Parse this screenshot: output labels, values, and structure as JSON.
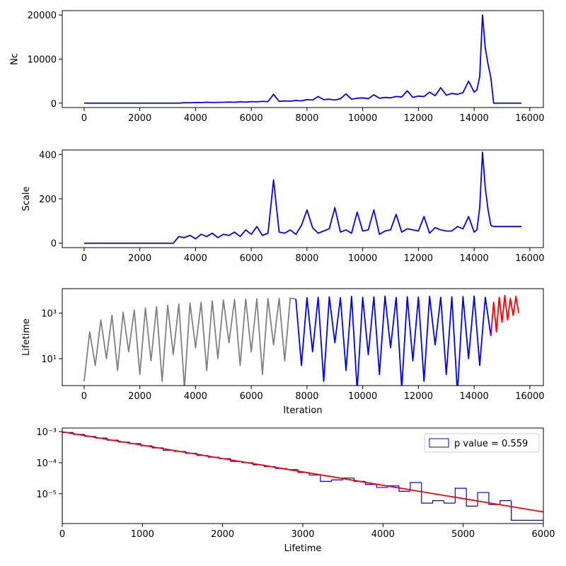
{
  "chart_data": [
    {
      "type": "line",
      "ylabel": "Nc",
      "x": [
        0,
        200,
        400,
        600,
        800,
        1000,
        1200,
        1400,
        1600,
        1800,
        2000,
        2200,
        2400,
        2600,
        2800,
        3000,
        3200,
        3400,
        3600,
        3800,
        4000,
        4200,
        4400,
        4600,
        4800,
        5000,
        5200,
        5400,
        5600,
        5800,
        6000,
        6200,
        6400,
        6600,
        6800,
        7000,
        7200,
        7400,
        7600,
        7800,
        8000,
        8200,
        8400,
        8600,
        8800,
        9000,
        9200,
        9400,
        9600,
        9800,
        10000,
        10200,
        10400,
        10600,
        10800,
        11000,
        11200,
        11400,
        11600,
        11800,
        12000,
        12200,
        12400,
        12600,
        12800,
        13000,
        13200,
        13400,
        13600,
        13800,
        14000,
        14100,
        14200,
        14300,
        14400,
        14500,
        14600,
        14700,
        15000,
        15400,
        15700
      ],
      "series": [
        {
          "color": "#0000ff",
          "values": [
            0,
            0,
            0,
            0,
            0,
            0,
            0,
            0,
            0,
            0,
            0,
            0,
            0,
            0,
            0,
            0,
            0,
            0,
            100,
            80,
            150,
            120,
            200,
            150,
            180,
            200,
            250,
            200,
            300,
            250,
            350,
            300,
            400,
            350,
            2000,
            400,
            500,
            450,
            600,
            500,
            800,
            700,
            1500,
            800,
            900,
            700,
            1000,
            2100,
            900,
            1100,
            1200,
            1000,
            1900,
            1100,
            1300,
            1200,
            1500,
            1400,
            2800,
            1300,
            1600,
            1500,
            2500,
            1700,
            3500,
            1800,
            2200,
            2000,
            2400,
            5000,
            2500,
            3000,
            6000,
            20000,
            12500,
            8800,
            5800,
            0,
            0,
            0,
            0
          ]
        }
      ],
      "xlim": [
        -785,
        16485
      ],
      "xticks": [
        0,
        2000,
        4000,
        6000,
        8000,
        10000,
        12000,
        14000,
        16000
      ],
      "ylim": [
        -1000,
        21000
      ],
      "yticks": [
        0,
        10000,
        20000
      ]
    },
    {
      "type": "line",
      "ylabel": "Scale",
      "x": [
        0,
        200,
        400,
        600,
        800,
        1000,
        1200,
        1400,
        1600,
        1800,
        2000,
        2200,
        2400,
        2600,
        2800,
        3000,
        3200,
        3400,
        3600,
        3800,
        4000,
        4200,
        4400,
        4600,
        4800,
        5000,
        5200,
        5400,
        5600,
        5800,
        6000,
        6200,
        6400,
        6600,
        6800,
        7000,
        7200,
        7400,
        7600,
        7800,
        8000,
        8200,
        8400,
        8600,
        8800,
        9000,
        9200,
        9400,
        9600,
        9800,
        10000,
        10200,
        10400,
        10600,
        10800,
        11000,
        11200,
        11400,
        11600,
        11800,
        12000,
        12200,
        12400,
        12600,
        12800,
        13000,
        13200,
        13400,
        13600,
        13800,
        14000,
        14100,
        14200,
        14300,
        14400,
        14500,
        14600,
        14700,
        15000,
        15400,
        15700
      ],
      "series": [
        {
          "color": "#0000ff",
          "values": [
            0,
            0,
            0,
            0,
            0,
            0,
            0,
            0,
            0,
            0,
            0,
            0,
            0,
            0,
            0,
            0,
            0,
            30,
            25,
            35,
            20,
            40,
            30,
            45,
            25,
            40,
            35,
            50,
            30,
            60,
            40,
            75,
            35,
            45,
            285,
            50,
            45,
            60,
            40,
            80,
            150,
            70,
            45,
            55,
            65,
            160,
            50,
            60,
            45,
            140,
            55,
            60,
            150,
            40,
            55,
            60,
            130,
            50,
            65,
            60,
            55,
            120,
            45,
            70,
            60,
            55,
            55,
            75,
            65,
            120,
            50,
            60,
            160,
            410,
            250,
            150,
            80,
            75,
            75,
            75,
            75
          ]
        }
      ],
      "xlim": [
        -785,
        16485
      ],
      "xticks": [
        0,
        2000,
        4000,
        6000,
        8000,
        10000,
        12000,
        14000,
        16000
      ],
      "ylim": [
        -20,
        420
      ],
      "yticks": [
        0,
        200,
        400
      ]
    },
    {
      "type": "line",
      "ylabel": "Lifetime",
      "xlabel": "Iteration",
      "log_y": true,
      "series": [
        {
          "color": "#808080",
          "x": [
            0,
            200,
            400,
            600,
            800,
            1000,
            1200,
            1400,
            1600,
            1800,
            2000,
            2200,
            2400,
            2600,
            2800,
            3000,
            3200,
            3400,
            3600,
            3800,
            4000,
            4200,
            4400,
            4600,
            4800,
            5000,
            5200,
            5400,
            5600,
            5800,
            6000,
            6200,
            6400,
            6600,
            6800,
            7000,
            7200,
            7400,
            7600
          ],
          "values": [
            1,
            150,
            5,
            500,
            10,
            800,
            3,
            1100,
            20,
            1400,
            2,
            1700,
            8,
            1900,
            1,
            2200,
            15,
            2500,
            0.5,
            2800,
            30,
            3000,
            3,
            3500,
            10,
            3800,
            50,
            4000,
            5,
            4200,
            20,
            4300,
            2,
            4400,
            40,
            4500,
            8,
            4600,
            4200
          ]
        },
        {
          "color": "#0000ff",
          "x": [
            7600,
            7800,
            8000,
            8200,
            8400,
            8600,
            8800,
            9000,
            9200,
            9400,
            9600,
            9800,
            10000,
            10200,
            10400,
            10600,
            10800,
            11000,
            11200,
            11400,
            11600,
            11800,
            12000,
            12200,
            12400,
            12600,
            12800,
            13000,
            13200,
            13400,
            13600,
            13800,
            14000,
            14200,
            14400,
            14600
          ],
          "values": [
            4200,
            5,
            4800,
            20,
            5000,
            1,
            5200,
            50,
            4800,
            3,
            5500,
            0.4,
            5000,
            15,
            5200,
            2,
            5600,
            30,
            4900,
            0.5,
            5300,
            8,
            5100,
            1,
            5500,
            40,
            5000,
            2,
            5200,
            0.3,
            5400,
            10,
            5600,
            5,
            5000,
            100
          ]
        },
        {
          "color": "#ff0000",
          "x": [
            14600,
            14700,
            14800,
            14900,
            15000,
            15100,
            15200,
            15300,
            15400,
            15500,
            15600
          ],
          "values": [
            100,
            3000,
            150,
            5000,
            400,
            6000,
            500,
            4500,
            800,
            5500,
            1000
          ]
        }
      ],
      "xlim": [
        -785,
        16485
      ],
      "xticks": [
        0,
        2000,
        4000,
        6000,
        8000,
        10000,
        12000,
        14000,
        16000
      ],
      "ylim": [
        0.65,
        12000
      ],
      "yticks": [
        {
          "value": 10,
          "label": "10¹"
        },
        {
          "value": 1000,
          "label": "10³"
        }
      ]
    },
    {
      "type": "histogram",
      "xlabel": "Lifetime",
      "log_y": true,
      "color": "#0000ff",
      "bins": [
        0,
        140,
        280,
        420,
        560,
        700,
        840,
        980,
        1120,
        1260,
        1400,
        1540,
        1680,
        1820,
        1960,
        2100,
        2240,
        2380,
        2520,
        2660,
        2800,
        2940,
        3080,
        3220,
        3360,
        3500,
        3640,
        3780,
        3920,
        4060,
        4200,
        4340,
        4480,
        4620,
        4760,
        4900,
        5040,
        5180,
        5320,
        5460,
        5600,
        6160
      ],
      "values": [
        0.00093,
        0.00081,
        0.0007,
        0.00062,
        0.00053,
        0.00046,
        0.00041,
        0.00035,
        0.0003,
        0.00025,
        0.00023,
        0.0002,
        0.00017,
        0.00015,
        0.000135,
        0.00011,
        0.0001,
        8.5e-05,
        7.5e-05,
        6.5e-05,
        6e-05,
        4.8e-05,
        4e-05,
        2.5e-05,
        2.8e-05,
        3.2e-05,
        2.5e-05,
        2e-05,
        1.6e-05,
        1.8e-05,
        1.2e-05,
        2.3e-05,
        5e-06,
        6e-06,
        5e-06,
        1.5e-05,
        4e-06,
        1.1e-05,
        4.5e-06,
        6e-06,
        1.4e-06
      ],
      "fit": {
        "color": "#ff0000",
        "x": [
          0,
          6000
        ],
        "values": [
          0.00098,
          2.6e-06
        ]
      },
      "legend": {
        "label": "p value = 0.559",
        "position": "upper right"
      },
      "xlim": [
        0,
        6000
      ],
      "xticks": [
        0,
        1000,
        2000,
        3000,
        4000,
        5000,
        6000
      ],
      "ylim": [
        1.1e-06,
        0.0013
      ],
      "yticks": [
        {
          "value": 1e-05,
          "label": "10⁻⁵"
        },
        {
          "value": 0.0001,
          "label": "10⁻⁴"
        },
        {
          "value": 0.001,
          "label": "10⁻³"
        }
      ]
    }
  ]
}
